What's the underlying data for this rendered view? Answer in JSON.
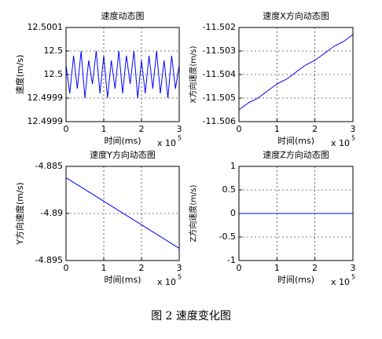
{
  "chart_data": [
    {
      "type": "line",
      "title": "速度动态图",
      "xlabel": "时间(ms)",
      "ylabel": "速度(m/s)",
      "x_scale_label": "x 10",
      "x_scale_exponent": "5",
      "x": [
        0,
        0.1,
        0.2,
        0.3,
        0.4,
        0.5,
        0.6,
        0.7,
        0.8,
        0.9,
        1,
        1.1,
        1.2,
        1.3,
        1.4,
        1.5,
        1.6,
        1.7,
        1.8,
        1.9,
        2,
        2.1,
        2.2,
        2.3,
        2.4,
        2.5,
        2.6,
        2.7,
        2.8,
        2.9,
        3
      ],
      "values": [
        12.50002,
        12.49996,
        12.50004,
        12.49997,
        12.50005,
        12.49995,
        12.50003,
        12.49998,
        12.50005,
        12.49996,
        12.50004,
        12.49995,
        12.50003,
        12.49997,
        12.50005,
        12.49996,
        12.50004,
        12.49998,
        12.50005,
        12.49995,
        12.50003,
        12.49996,
        12.50004,
        12.49997,
        12.50005,
        12.49996,
        12.50003,
        12.49995,
        12.50004,
        12.49997,
        12.50002
      ],
      "color": "#0000ff",
      "xlim": [
        0,
        3
      ],
      "xticks": [
        0,
        1,
        2,
        3
      ],
      "ylim": [
        12.4999,
        12.5001
      ],
      "yticks": [
        {
          "value": 12.4999,
          "label": "12.4999"
        },
        {
          "value": 12.49995,
          "label": "12.4999"
        },
        {
          "value": 12.5,
          "label": "12.5"
        },
        {
          "value": 12.50005,
          "label": "12.5"
        },
        {
          "value": 12.5001,
          "label": "12.5001"
        }
      ],
      "grid": true
    },
    {
      "type": "line",
      "title": "速度X方向动态图",
      "xlabel": "时间(ms)",
      "ylabel": "X方向速度(m/s)",
      "x_scale_label": "x 10",
      "x_scale_exponent": "5",
      "x": [
        0,
        0.25,
        0.5,
        0.75,
        1,
        1.25,
        1.5,
        1.75,
        2,
        2.25,
        2.5,
        2.75,
        3
      ],
      "values": [
        -11.5055,
        -11.5052,
        -11.505,
        -11.5047,
        -11.5044,
        -11.5042,
        -11.5039,
        -11.5036,
        -11.5034,
        -11.5031,
        -11.5028,
        -11.5026,
        -11.5023
      ],
      "color": "#0000ff",
      "xlim": [
        0,
        3
      ],
      "xticks": [
        0,
        1,
        2,
        3
      ],
      "ylim": [
        -11.506,
        -11.502
      ],
      "yticks": [
        -11.506,
        -11.505,
        -11.504,
        -11.503,
        -11.502
      ],
      "grid": true
    },
    {
      "type": "line",
      "title": "速度Y方向动态图",
      "xlabel": "时间(ms)",
      "ylabel": "Y方向速度(m/s)",
      "x_scale_label": "x 10",
      "x_scale_exponent": "5",
      "x": [
        0,
        1,
        2,
        3
      ],
      "values": [
        -4.8862,
        -4.8887,
        -4.8912,
        -4.8937
      ],
      "color": "#0000ff",
      "xlim": [
        0,
        3
      ],
      "xticks": [
        0,
        1,
        2,
        3
      ],
      "ylim": [
        -4.895,
        -4.885
      ],
      "yticks": [
        -4.895,
        -4.89,
        -4.885
      ],
      "grid": true
    },
    {
      "type": "line",
      "title": "速度Z方向动态图",
      "xlabel": "时间(ms)",
      "ylabel": "Z方向速度(m/s)",
      "x_scale_label": "x 10",
      "x_scale_exponent": "5",
      "x": [
        0,
        3
      ],
      "values": [
        0,
        0
      ],
      "color": "#0000ff",
      "xlim": [
        0,
        3
      ],
      "xticks": [
        0,
        1,
        2,
        3
      ],
      "ylim": [
        -1,
        1
      ],
      "yticks": [
        -1,
        -0.5,
        0,
        0.5,
        1
      ],
      "grid": true
    }
  ],
  "caption": "图 2 速度变化图"
}
